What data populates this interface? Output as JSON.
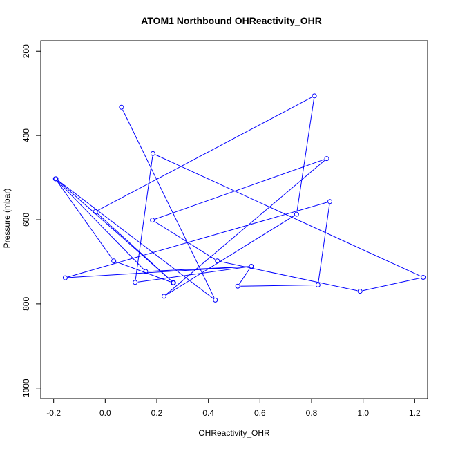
{
  "chart_data": {
    "type": "line",
    "title": "ATOM1 Northbound OHReactivity_OHR",
    "xlabel": "OHReactivity_OHR",
    "ylabel": "Pressure (mbar)",
    "xlim": [
      -0.25,
      1.25
    ],
    "ylim": [
      1025,
      175
    ],
    "y_reversed": true,
    "xticks": [
      -0.2,
      0.0,
      0.2,
      0.4,
      0.6,
      0.8,
      1.0,
      1.2
    ],
    "xtick_labels": [
      "-0.2",
      "0.0",
      "0.2",
      "0.4",
      "0.6",
      "0.8",
      "1.0",
      "1.2"
    ],
    "yticks": [
      200,
      400,
      600,
      800,
      1000
    ],
    "ytick_labels": [
      "200",
      "400",
      "600",
      "800",
      "1000"
    ],
    "grid": false,
    "color": "#0000ff",
    "series": [
      {
        "name": "OHReactivity_OHR",
        "points": [
          {
            "x": 0.063,
            "y": 333
          },
          {
            "x": 0.427,
            "y": 791
          },
          {
            "x": -0.191,
            "y": 503
          },
          {
            "x": 0.265,
            "y": 750
          },
          {
            "x": -0.038,
            "y": 581
          },
          {
            "x": 0.811,
            "y": 306
          },
          {
            "x": 0.742,
            "y": 587
          },
          {
            "x": 0.228,
            "y": 782
          },
          {
            "x": 0.859,
            "y": 455
          },
          {
            "x": 0.183,
            "y": 601
          },
          {
            "x": 0.435,
            "y": 698
          },
          {
            "x": 0.988,
            "y": 770
          },
          {
            "x": 1.233,
            "y": 737
          },
          {
            "x": 0.185,
            "y": 443
          },
          {
            "x": 0.116,
            "y": 749
          },
          {
            "x": 0.566,
            "y": 711
          },
          {
            "x": 0.514,
            "y": 758
          },
          {
            "x": 0.825,
            "y": 755
          },
          {
            "x": 0.871,
            "y": 557
          },
          {
            "x": -0.155,
            "y": 738
          },
          {
            "x": 0.567,
            "y": 711
          },
          {
            "x": 0.157,
            "y": 723
          },
          {
            "x": -0.193,
            "y": 503
          },
          {
            "x": 0.033,
            "y": 698
          },
          {
            "x": 0.263,
            "y": 750
          }
        ]
      }
    ]
  }
}
